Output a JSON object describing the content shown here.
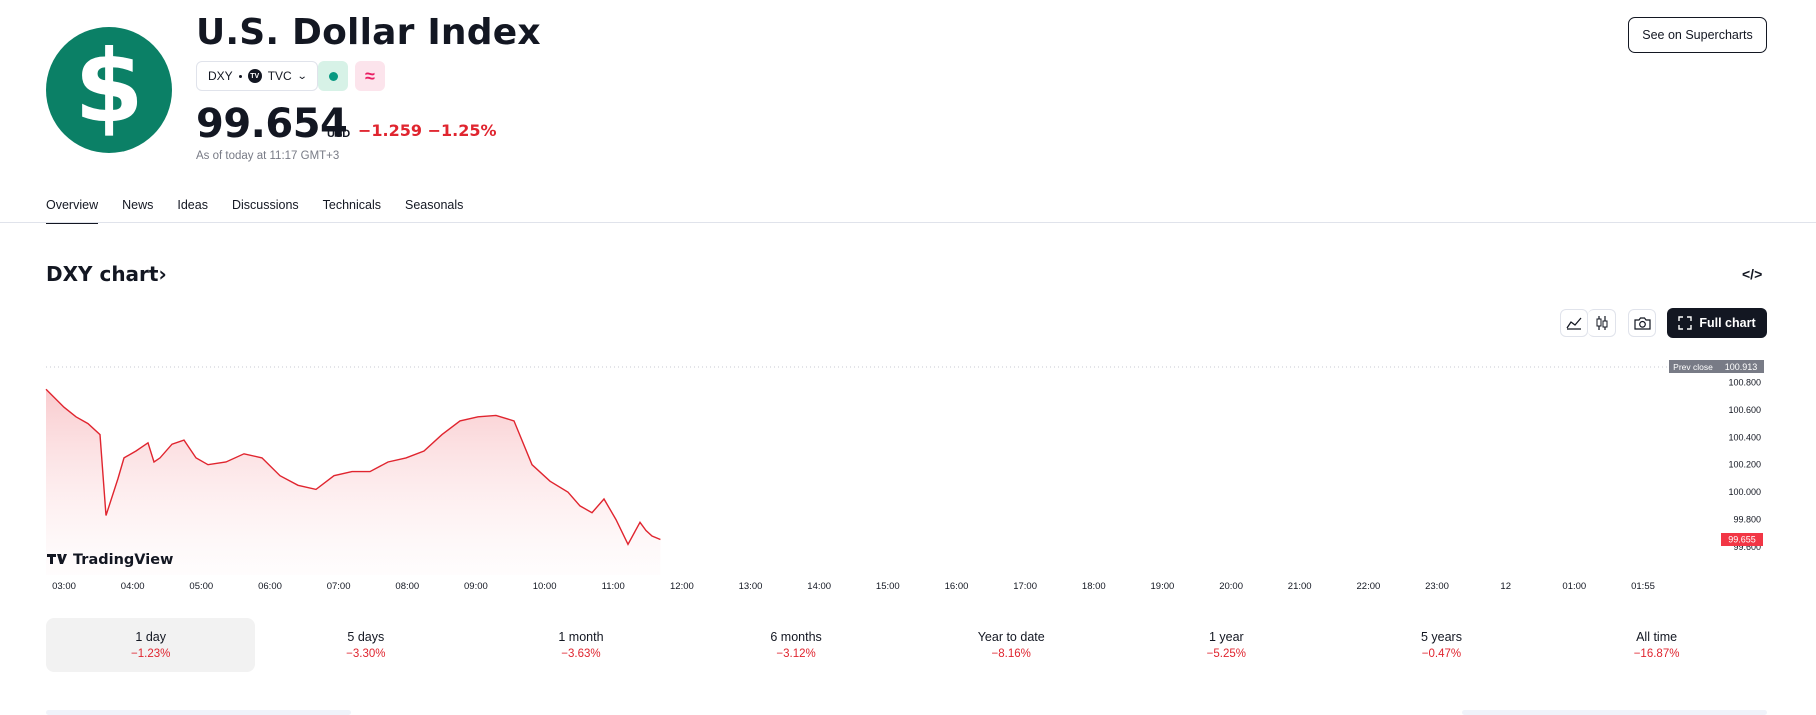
{
  "header": {
    "logo_symbol": "$",
    "title": "U.S. Dollar Index",
    "ticker": "DXY",
    "exchange_badge": "TV",
    "exchange": "TVC",
    "delay_icon": "≈",
    "price": "99.654",
    "currency": "USD",
    "change": "−1.259 −1.25%",
    "as_of": "As of today at 11:17 GMT+3",
    "supercharts_label": "See on Supercharts"
  },
  "tabs": [
    "Overview",
    "News",
    "Ideas",
    "Discussions",
    "Technicals",
    "Seasonals"
  ],
  "chart": {
    "title": "DXY chart",
    "title_arrow": "›",
    "embed_icon": "</>",
    "full_chart_label": "Full chart",
    "watermark": "TradingView",
    "prev_close_label": "Prev close",
    "prev_close_value": "100.913",
    "last_price_label": "99.655",
    "y_ticks": [
      "100.800",
      "100.600",
      "100.400",
      "100.200",
      "100.000",
      "99.800",
      "99.600"
    ],
    "x_ticks": [
      "03:00",
      "04:00",
      "05:00",
      "06:00",
      "07:00",
      "08:00",
      "09:00",
      "10:00",
      "11:00",
      "12:00",
      "13:00",
      "14:00",
      "15:00",
      "16:00",
      "17:00",
      "18:00",
      "19:00",
      "20:00",
      "21:00",
      "22:00",
      "23:00",
      "12",
      "01:00",
      "01:55"
    ],
    "colors": {
      "line": "#e0252f",
      "fill_top": "#f9c9cc",
      "prev_close_bg": "#787b86",
      "last_price_bg": "#f23645"
    }
  },
  "chart_data": {
    "type": "area",
    "ylim": [
      99.6,
      100.913
    ],
    "prev_close": 100.913,
    "last_price": 99.655,
    "x": [
      "02:45",
      "03:00",
      "03:10",
      "03:20",
      "03:30",
      "03:35",
      "03:45",
      "03:50",
      "04:00",
      "04:10",
      "04:15",
      "04:20",
      "04:30",
      "04:40",
      "04:50",
      "05:00",
      "05:15",
      "05:30",
      "05:45",
      "06:00",
      "06:15",
      "06:30",
      "06:45",
      "07:00",
      "07:15",
      "07:30",
      "07:45",
      "08:00",
      "08:15",
      "08:30",
      "08:45",
      "09:00",
      "09:15",
      "09:30",
      "09:45",
      "10:00",
      "10:10",
      "10:20",
      "10:30",
      "10:40",
      "10:50",
      "11:00",
      "11:05",
      "11:10",
      "11:17"
    ],
    "series": [
      {
        "values": [
          100.75,
          100.62,
          100.55,
          100.5,
          100.42,
          99.83,
          100.1,
          100.25,
          100.3,
          100.36,
          100.22,
          100.25,
          100.35,
          100.38,
          100.25,
          100.2,
          100.22,
          100.28,
          100.25,
          100.12,
          100.05,
          100.02,
          100.12,
          100.15,
          100.15,
          100.22,
          100.25,
          100.3,
          100.42,
          100.52,
          100.55,
          100.56,
          100.52,
          100.2,
          100.08,
          100.0,
          99.9,
          99.85,
          99.95,
          99.8,
          99.62,
          99.78,
          99.72,
          99.68,
          99.655
        ]
      }
    ]
  },
  "periods": [
    {
      "label": "1 day",
      "value": "−1.23%",
      "active": true
    },
    {
      "label": "5 days",
      "value": "−3.30%"
    },
    {
      "label": "1 month",
      "value": "−3.63%"
    },
    {
      "label": "6 months",
      "value": "−3.12%"
    },
    {
      "label": "Year to date",
      "value": "−8.16%"
    },
    {
      "label": "1 year",
      "value": "−5.25%"
    },
    {
      "label": "5 years",
      "value": "−0.47%"
    },
    {
      "label": "All time",
      "value": "−16.87%"
    }
  ]
}
